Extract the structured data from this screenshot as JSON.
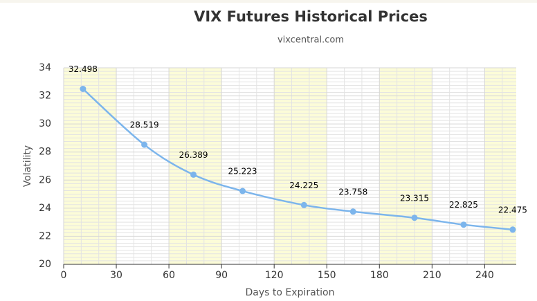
{
  "chart_data": {
    "type": "line",
    "title": "VIX Futures Historical Prices",
    "subtitle": "vixcentral.com",
    "x_label": "Days to Expiration",
    "y_label": "Volatility",
    "x": [
      11,
      46,
      74,
      102,
      137,
      165,
      200,
      228,
      256
    ],
    "series": [
      {
        "name": "VIX Futures",
        "color": "#7cb5ec",
        "values": [
          32.498,
          28.519,
          26.389,
          25.223,
          24.225,
          23.758,
          23.315,
          22.825,
          22.475
        ]
      }
    ],
    "xlim": [
      0,
      258
    ],
    "xticks": [
      0,
      30,
      60,
      90,
      120,
      150,
      180,
      210,
      240
    ],
    "ylim": [
      20,
      34
    ],
    "yticks": [
      20,
      22,
      24,
      26,
      28,
      30,
      32,
      34
    ],
    "grid": true,
    "band_color": "#fcfcd8"
  }
}
